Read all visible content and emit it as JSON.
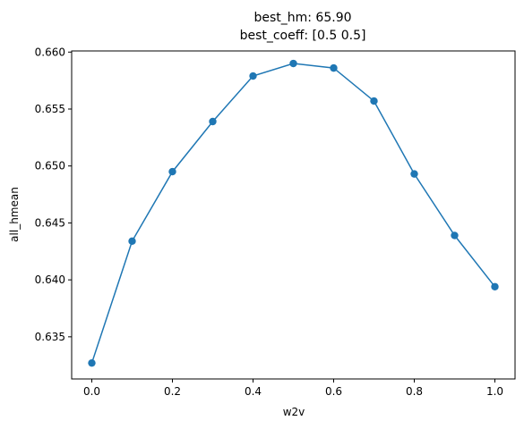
{
  "chart_data": {
    "type": "line",
    "title_lines": [
      "best_hm: 65.90",
      "best_coeff: [0.5 0.5]"
    ],
    "xlabel": "w2v",
    "ylabel": "all_hmean",
    "xlim": [
      -0.05,
      1.05
    ],
    "ylim": [
      0.6313,
      0.6601
    ],
    "xticks": [
      0.0,
      0.2,
      0.4,
      0.6,
      0.8,
      1.0
    ],
    "xtick_labels": [
      "0.0",
      "0.2",
      "0.4",
      "0.6",
      "0.8",
      "1.0"
    ],
    "yticks": [
      0.635,
      0.64,
      0.645,
      0.65,
      0.655,
      0.66
    ],
    "ytick_labels": [
      "0.635",
      "0.640",
      "0.645",
      "0.650",
      "0.655",
      "0.660"
    ],
    "grid": false,
    "series": [
      {
        "color": "#1f77b4",
        "marker": "circle",
        "x": [
          0.0,
          0.1,
          0.2,
          0.3,
          0.4,
          0.5,
          0.6,
          0.7,
          0.8,
          0.9,
          1.0
        ],
        "y": [
          0.6327,
          0.6434,
          0.6495,
          0.6539,
          0.6579,
          0.659,
          0.6586,
          0.6557,
          0.6493,
          0.6439,
          0.6394
        ]
      }
    ]
  }
}
